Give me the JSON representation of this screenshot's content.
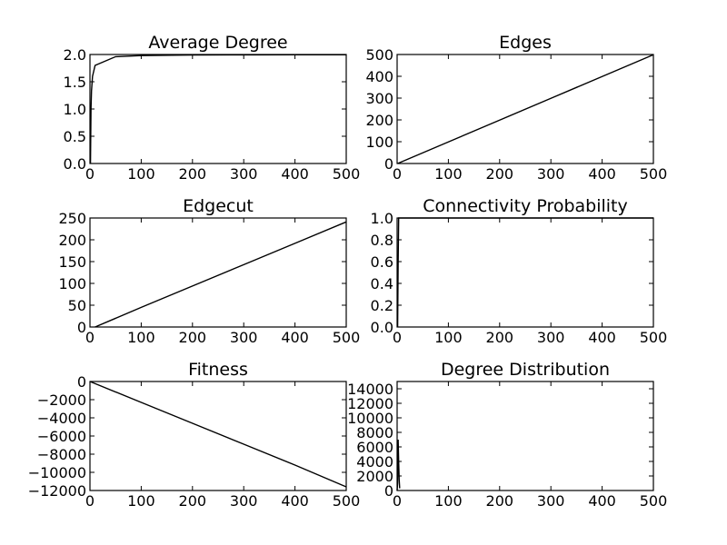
{
  "chart_data": [
    {
      "type": "line",
      "title": "Average Degree",
      "xlim": [
        0,
        500
      ],
      "ylim": [
        0,
        2.0
      ],
      "xticks": [
        0,
        100,
        200,
        300,
        400,
        500
      ],
      "yticks": [
        0,
        0.5,
        1.0,
        1.5,
        2.0
      ],
      "xtick_labels": [
        "0",
        "100",
        "200",
        "300",
        "400",
        "500"
      ],
      "ytick_labels": [
        "0.0",
        "0.5",
        "1.0",
        "1.5",
        "2.0"
      ],
      "grid": false,
      "series": [
        {
          "x": [
            1,
            2,
            3,
            5,
            10,
            50,
            100,
            200,
            300,
            400,
            500
          ],
          "y": [
            0,
            1.0,
            1.33,
            1.6,
            1.8,
            1.96,
            1.98,
            1.99,
            1.993,
            1.995,
            1.996
          ]
        }
      ]
    },
    {
      "type": "line",
      "title": "Edges",
      "xlim": [
        0,
        500
      ],
      "ylim": [
        0,
        500
      ],
      "xticks": [
        0,
        100,
        200,
        300,
        400,
        500
      ],
      "yticks": [
        0,
        100,
        200,
        300,
        400,
        500
      ],
      "xtick_labels": [
        "0",
        "100",
        "200",
        "300",
        "400",
        "500"
      ],
      "ytick_labels": [
        "0",
        "100",
        "200",
        "300",
        "400",
        "500"
      ],
      "grid": false,
      "series": [
        {
          "x": [
            1,
            100,
            200,
            300,
            400,
            500
          ],
          "y": [
            0,
            99,
            199,
            299,
            399,
            499
          ]
        }
      ]
    },
    {
      "type": "line",
      "title": "Edgecut",
      "xlim": [
        0,
        500
      ],
      "ylim": [
        0,
        250
      ],
      "xticks": [
        0,
        100,
        200,
        300,
        400,
        500
      ],
      "yticks": [
        0,
        50,
        100,
        150,
        200,
        250
      ],
      "xtick_labels": [
        "0",
        "100",
        "200",
        "300",
        "400",
        "500"
      ],
      "ytick_labels": [
        "0",
        "50",
        "100",
        "150",
        "200",
        "250"
      ],
      "grid": false,
      "series": [
        {
          "x": [
            10,
            100,
            200,
            300,
            400,
            500
          ],
          "y": [
            0,
            45,
            94,
            143,
            192,
            241
          ]
        }
      ]
    },
    {
      "type": "line",
      "title": "Connectivity Probability",
      "xlim": [
        0,
        500
      ],
      "ylim": [
        0,
        1.0
      ],
      "xticks": [
        0,
        100,
        200,
        300,
        400,
        500
      ],
      "yticks": [
        0,
        0.2,
        0.4,
        0.6,
        0.8,
        1.0
      ],
      "xtick_labels": [
        "0",
        "100",
        "200",
        "300",
        "400",
        "500"
      ],
      "ytick_labels": [
        "0.0",
        "0.2",
        "0.4",
        "0.6",
        "0.8",
        "1.0"
      ],
      "grid": false,
      "series": [
        {
          "x": [
            1,
            2,
            3,
            500
          ],
          "y": [
            0,
            0.6,
            1.0,
            1.0
          ]
        }
      ]
    },
    {
      "type": "line",
      "title": "Fitness",
      "xlim": [
        0,
        500
      ],
      "ylim": [
        -12000,
        0
      ],
      "xticks": [
        0,
        100,
        200,
        300,
        400,
        500
      ],
      "yticks": [
        -12000,
        -10000,
        -8000,
        -6000,
        -4000,
        -2000,
        0
      ],
      "xtick_labels": [
        "0",
        "100",
        "200",
        "300",
        "400",
        "500"
      ],
      "ytick_labels": [
        "−12000",
        "−10000",
        "−8000",
        "−6000",
        "−4000",
        "−2000",
        "0"
      ],
      "grid": false,
      "series": [
        {
          "x": [
            0,
            100,
            200,
            300,
            400,
            500
          ],
          "y": [
            0,
            -2300,
            -4600,
            -6900,
            -9200,
            -11600
          ]
        }
      ]
    },
    {
      "type": "line",
      "title": "Degree Distribution",
      "xlim": [
        0,
        500
      ],
      "ylim": [
        0,
        15000
      ],
      "xticks": [
        0,
        100,
        200,
        300,
        400,
        500
      ],
      "yticks": [
        0,
        2000,
        4000,
        6000,
        8000,
        10000,
        12000,
        14000
      ],
      "xtick_labels": [
        "0",
        "100",
        "200",
        "300",
        "400",
        "500"
      ],
      "ytick_labels": [
        "0",
        "2000",
        "4000",
        "6000",
        "8000",
        "10000",
        "12000",
        "14000"
      ],
      "grid": false,
      "series": [
        {
          "x": [
            0,
            1,
            2,
            3,
            4,
            5
          ],
          "y": [
            0,
            1000,
            7000,
            4000,
            1500,
            300
          ]
        }
      ]
    }
  ]
}
